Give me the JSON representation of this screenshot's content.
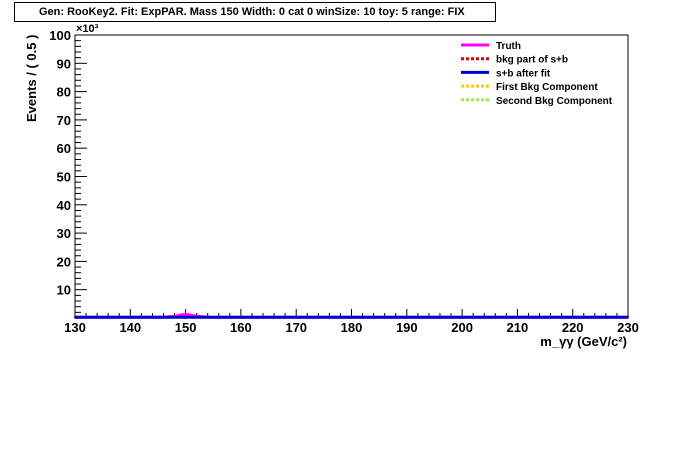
{
  "title": "Gen: RooKey2. Fit: ExpPAR. Mass 150  Width: 0 cat 0 winSize: 10 toy: 5 range: FIX",
  "chart_data": {
    "type": "line",
    "xlabel": "m_γγ (GeV/c²)",
    "ylabel": "Events / ( 0.5 )",
    "y_exponent_label": "×10³",
    "xlim": [
      130,
      230
    ],
    "ylim": [
      0,
      100
    ],
    "x_ticks": [
      130,
      140,
      150,
      160,
      170,
      180,
      190,
      200,
      210,
      220,
      230
    ],
    "y_ticks": [
      10,
      20,
      30,
      40,
      50,
      60,
      70,
      80,
      90,
      100
    ],
    "grid": false,
    "legend_position": "top-right",
    "legend": [
      {
        "name": "Truth",
        "color": "#ff00ff",
        "style": "solid"
      },
      {
        "name": "bkg part of s+b",
        "color": "#dd0000",
        "style": "dotted"
      },
      {
        "name": "s+b after fit",
        "color": "#0000cc",
        "style": "solid"
      },
      {
        "name": "First Bkg Component",
        "color": "#ffcc00",
        "style": "dotted"
      },
      {
        "name": "Second Bkg Component",
        "color": "#99ee44",
        "style": "dotted"
      }
    ],
    "series": [
      {
        "name": "Truth",
        "color": "#ff00ff",
        "x": [
          130,
          146,
          148,
          149,
          150,
          151,
          152,
          154,
          230
        ],
        "y": [
          0.3,
          0.3,
          0.6,
          1.0,
          1.3,
          1.0,
          0.6,
          0.3,
          0.3
        ]
      },
      {
        "name": "s+b after fit",
        "color": "#0000cc",
        "x": [
          130,
          230
        ],
        "y": [
          0.3,
          0.3
        ]
      }
    ],
    "data_points_y": 0.3
  }
}
